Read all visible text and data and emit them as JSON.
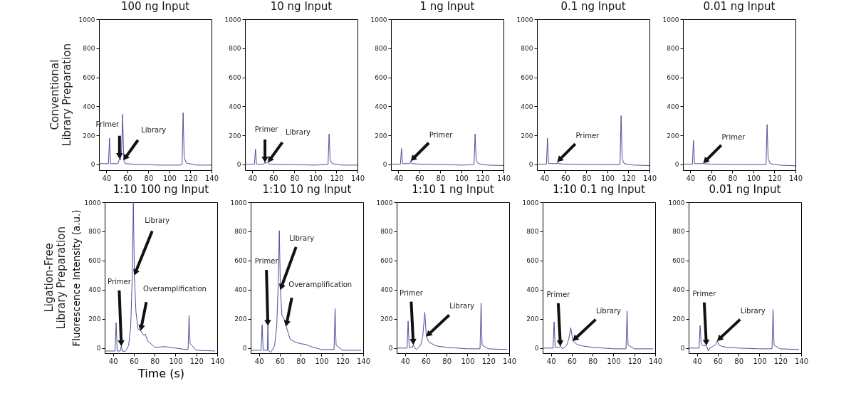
{
  "chart_data": [
    {
      "type": "line",
      "title": "100 ng Input",
      "color": "#4a4f9a",
      "xlim": [
        33,
        140
      ],
      "ylim": [
        -40,
        1000
      ],
      "xticks": [
        40,
        60,
        80,
        100,
        120,
        140
      ],
      "yticks": [
        0,
        200,
        400,
        600,
        800,
        1000
      ],
      "x": [
        33,
        42,
        43,
        44,
        51,
        52.5,
        53.5,
        54.5,
        55.5,
        56.5,
        58,
        70,
        90,
        110,
        112,
        113,
        114,
        116,
        125,
        140
      ],
      "values": [
        5,
        5,
        180,
        5,
        5,
        40,
        30,
        100,
        345,
        30,
        5,
        0,
        -5,
        -5,
        0,
        355,
        50,
        10,
        -5,
        -5
      ],
      "annotations": [
        "Conventional\nLibrary Preparation",
        {
          "text": "Primer",
          "x": 52.5,
          "y": 40
        },
        {
          "text": "Library",
          "x": 56.5,
          "y": 30
        }
      ]
    },
    {
      "type": "line",
      "title": "10 ng Input",
      "color": "#4a4f9a",
      "xlim": [
        33,
        140
      ],
      "ylim": [
        -40,
        1000
      ],
      "xticks": [
        40,
        60,
        80,
        100,
        120,
        140
      ],
      "yticks": [
        0,
        200,
        400,
        600,
        800,
        1000
      ],
      "x": [
        33,
        42,
        43,
        44,
        51,
        52,
        53,
        54,
        55,
        56,
        60,
        80,
        100,
        112,
        113,
        114,
        116,
        125,
        140
      ],
      "values": [
        2,
        2,
        105,
        2,
        2,
        15,
        5,
        15,
        15,
        2,
        0,
        -2,
        -5,
        0,
        210,
        30,
        5,
        -5,
        -5
      ],
      "annotations": [
        {
          "text": "Primer",
          "x": 52,
          "y": 15
        },
        {
          "text": "Library",
          "x": 55,
          "y": 15
        }
      ]
    },
    {
      "type": "line",
      "title": "1 ng Input",
      "color": "#4a4f9a",
      "xlim": [
        33,
        140
      ],
      "ylim": [
        -40,
        1000
      ],
      "xticks": [
        40,
        60,
        80,
        100,
        120,
        140
      ],
      "yticks": [
        0,
        200,
        400,
        600,
        800,
        1000
      ],
      "x": [
        33,
        42,
        43,
        44,
        51,
        52,
        53,
        60,
        80,
        100,
        112,
        113,
        114,
        116,
        125,
        140
      ],
      "values": [
        2,
        2,
        110,
        5,
        5,
        25,
        5,
        2,
        0,
        -5,
        -2,
        210,
        30,
        5,
        -5,
        -8
      ],
      "annotations": [
        {
          "text": "Primer",
          "x": 52,
          "y": 25
        }
      ]
    },
    {
      "type": "line",
      "title": "0.1 ng Input",
      "color": "#4a4f9a",
      "xlim": [
        33,
        140
      ],
      "ylim": [
        -40,
        1000
      ],
      "xticks": [
        40,
        60,
        80,
        100,
        120,
        140
      ],
      "yticks": [
        0,
        200,
        400,
        600,
        800,
        1000
      ],
      "x": [
        33,
        42,
        43,
        44,
        52,
        52.5,
        53,
        60,
        80,
        100,
        112,
        113,
        114,
        116,
        125,
        140
      ],
      "values": [
        2,
        2,
        180,
        5,
        5,
        18,
        5,
        2,
        0,
        -2,
        0,
        335,
        40,
        5,
        -5,
        -8
      ],
      "annotations": [
        {
          "text": "Primer",
          "x": 52.5,
          "y": 18
        }
      ]
    },
    {
      "type": "line",
      "title": "0.01 ng Input",
      "color": "#4a4f9a",
      "xlim": [
        33,
        140
      ],
      "ylim": [
        -40,
        1000
      ],
      "xticks": [
        40,
        60,
        80,
        100,
        120,
        140
      ],
      "yticks": [
        0,
        200,
        400,
        600,
        800,
        1000
      ],
      "x": [
        33,
        42,
        43,
        44,
        52,
        52.5,
        53,
        60,
        80,
        100,
        112,
        113,
        114,
        116,
        125,
        140
      ],
      "values": [
        2,
        2,
        165,
        5,
        5,
        10,
        5,
        2,
        0,
        -2,
        0,
        275,
        40,
        5,
        -5,
        -10
      ],
      "annotations": [
        {
          "text": "Primer",
          "x": 52.5,
          "y": 10
        }
      ]
    },
    {
      "type": "line",
      "title": "1:10 100 ng Input",
      "xlabel": "Time (s)",
      "ylabel": "Fluorescence Intensity (a.u.)",
      "color": "#4a4f9a",
      "xlim": [
        32,
        140
      ],
      "ylim": [
        -35,
        1000
      ],
      "xticks": [
        40,
        60,
        80,
        100,
        120,
        140
      ],
      "yticks": [
        0,
        200,
        400,
        600,
        800,
        1000
      ],
      "x": [
        33,
        42,
        43,
        44,
        47,
        48,
        49,
        51,
        53,
        55,
        57,
        58.5,
        59.5,
        60.5,
        62,
        64,
        66.5,
        69,
        71,
        73,
        78,
        80,
        90,
        100,
        110,
        112,
        113,
        114,
        120,
        138
      ],
      "values": [
        -20,
        -20,
        175,
        -20,
        -20,
        15,
        -20,
        -25,
        -10,
        20,
        150,
        500,
        1000,
        500,
        250,
        130,
        120,
        90,
        95,
        50,
        20,
        5,
        10,
        0,
        -10,
        -10,
        225,
        30,
        -15,
        -20
      ],
      "annotations": [
        "Ligation-Free\nLibrary Preparation",
        {
          "text": "Primer",
          "x": 48,
          "y": 15
        },
        {
          "text": "Library",
          "x": 60.5,
          "y": 500
        },
        {
          "text": "Overamplification",
          "x": 66.5,
          "y": 120
        }
      ]
    },
    {
      "type": "line",
      "title": "1:10 10 ng Input",
      "color": "#4a4f9a",
      "xlim": [
        32,
        140
      ],
      "ylim": [
        -35,
        1000
      ],
      "xticks": [
        40,
        60,
        80,
        100,
        120,
        140
      ],
      "yticks": [
        0,
        200,
        400,
        600,
        800,
        1000
      ],
      "x": [
        33,
        42,
        43,
        44,
        48,
        48.5,
        49,
        51,
        53,
        55,
        57,
        58.5,
        59.5,
        60.5,
        62,
        64,
        66,
        70,
        75,
        80,
        85,
        90,
        100,
        112,
        113,
        114,
        120,
        138
      ],
      "values": [
        -15,
        -15,
        160,
        -15,
        -15,
        155,
        -15,
        -30,
        -10,
        20,
        150,
        450,
        805,
        400,
        225,
        200,
        150,
        60,
        40,
        30,
        25,
        10,
        -10,
        -10,
        270,
        20,
        -15,
        -15
      ],
      "annotations": [
        {
          "text": "Primer",
          "x": 48.5,
          "y": 155
        },
        {
          "text": "Library",
          "x": 60.5,
          "y": 400
        },
        {
          "text": "Overamplification",
          "x": 66,
          "y": 150
        }
      ]
    },
    {
      "type": "line",
      "title": "1:10 1 ng Input",
      "color": "#4a4f9a",
      "xlim": [
        32,
        140
      ],
      "ylim": [
        -35,
        1000
      ],
      "xticks": [
        40,
        60,
        80,
        100,
        120,
        140
      ],
      "yticks": [
        0,
        200,
        400,
        600,
        800,
        1000
      ],
      "x": [
        33,
        42,
        43,
        44,
        47,
        48,
        49,
        51,
        53,
        55,
        57,
        59,
        60.5,
        63,
        70,
        80,
        100,
        112,
        113,
        114,
        120,
        138
      ],
      "values": [
        0,
        0,
        185,
        5,
        5,
        25,
        5,
        -10,
        5,
        20,
        80,
        245,
        80,
        40,
        15,
        5,
        -5,
        -5,
        310,
        20,
        -5,
        -10
      ],
      "annotations": [
        {
          "text": "Primer",
          "x": 48,
          "y": 25
        },
        {
          "text": "Library",
          "x": 60.5,
          "y": 80
        }
      ]
    },
    {
      "type": "line",
      "title": "1:10 0.1 ng Input",
      "color": "#4a4f9a",
      "xlim": [
        32,
        140
      ],
      "ylim": [
        -35,
        1000
      ],
      "xticks": [
        40,
        60,
        80,
        100,
        120,
        140
      ],
      "yticks": [
        0,
        200,
        400,
        600,
        800,
        1000
      ],
      "x": [
        33,
        42,
        43,
        44,
        48,
        49,
        50,
        51,
        53,
        55,
        57,
        59,
        61,
        65,
        70,
        80,
        100,
        112,
        113,
        114,
        120,
        138
      ],
      "values": [
        0,
        0,
        180,
        5,
        5,
        15,
        5,
        -5,
        5,
        20,
        60,
        140,
        50,
        25,
        15,
        5,
        -5,
        -5,
        255,
        20,
        -5,
        -5
      ],
      "annotations": [
        {
          "text": "Primer",
          "x": 49,
          "y": 15
        },
        {
          "text": "Library",
          "x": 61,
          "y": 50
        }
      ]
    },
    {
      "type": "line",
      "title": "0.01 ng Input",
      "color": "#4a4f9a",
      "xlim": [
        32,
        140
      ],
      "ylim": [
        -35,
        1000
      ],
      "xticks": [
        40,
        60,
        80,
        100,
        120,
        140
      ],
      "yticks": [
        0,
        200,
        400,
        600,
        800,
        1000
      ],
      "x": [
        33,
        42,
        43,
        44,
        46,
        49,
        51,
        53,
        55,
        58,
        59.5,
        61,
        65,
        70,
        80,
        100,
        112,
        113,
        114,
        120,
        138
      ],
      "values": [
        0,
        0,
        155,
        30,
        15,
        20,
        -20,
        5,
        10,
        25,
        50,
        20,
        10,
        5,
        0,
        -5,
        -5,
        265,
        20,
        -5,
        -10
      ],
      "annotations": [
        {
          "text": "Primer",
          "x": 49,
          "y": 20
        },
        {
          "text": "Library",
          "x": 59.5,
          "y": 50
        }
      ]
    }
  ]
}
